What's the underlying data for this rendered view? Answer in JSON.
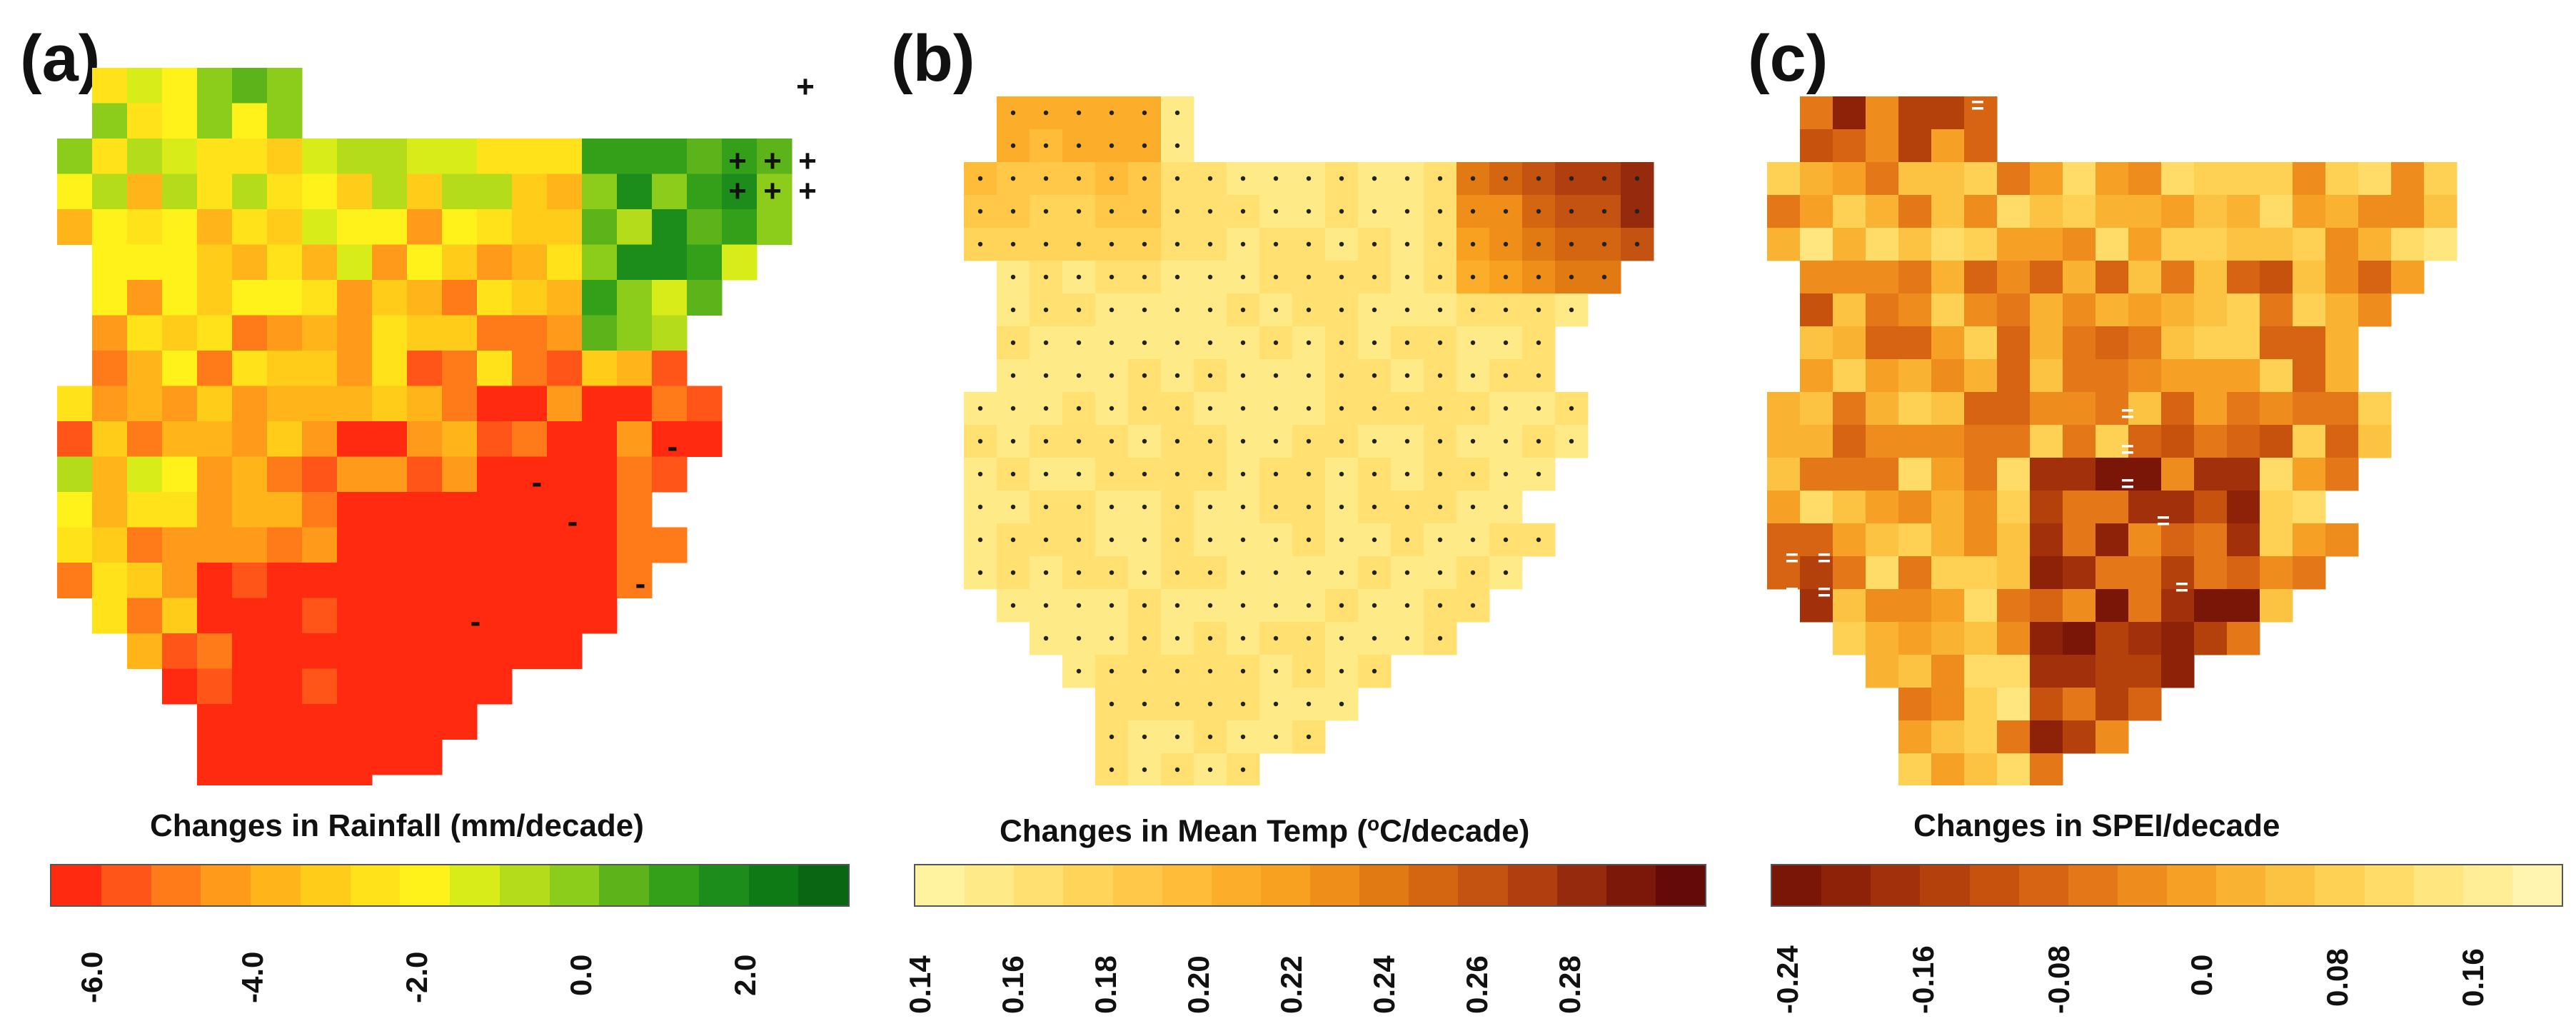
{
  "panels": [
    {
      "label": "(a)",
      "colorbar_title": "Changes in Rainfall (mm/decade)",
      "colorbar_colors": [
        "#ff2a10",
        "#ff5518",
        "#ff7a18",
        "#ff9a1a",
        "#ffb41a",
        "#ffcc1a",
        "#ffe21a",
        "#fff21a",
        "#d8ec1a",
        "#b4dc1a",
        "#8ccc1a",
        "#5cb41a",
        "#34a01a",
        "#1c8c1a",
        "#0e7a16",
        "#0a6612"
      ],
      "ticks": [
        "-6.0",
        "-4.0",
        "-2.0",
        "0.0",
        "2.0"
      ],
      "significance_markers": [
        "+",
        "-"
      ]
    },
    {
      "label": "(b)",
      "colorbar_title_prefix": "Changes in Mean Temp (",
      "colorbar_title_sup": "o",
      "colorbar_title_suffix": "C/decade)",
      "colorbar_colors": [
        "#fff3a0",
        "#ffea88",
        "#ffe070",
        "#ffd458",
        "#ffc848",
        "#ffbc38",
        "#fcae2a",
        "#f8a020",
        "#ef8e18",
        "#e27a14",
        "#d46612",
        "#c45210",
        "#b03e0e",
        "#962a0c",
        "#7c180a",
        "#640a08"
      ],
      "ticks": [
        "0.14",
        "0.16",
        "0.18",
        "0.20",
        "0.22",
        "0.24",
        "0.26",
        "0.28"
      ],
      "significance_markers": [
        "•"
      ]
    },
    {
      "label": "(c)",
      "colorbar_title": "Changes in SPEI/decade",
      "colorbar_colors": [
        "#7a1608",
        "#8e2208",
        "#a2300a",
        "#b4400c",
        "#c6520e",
        "#d66412",
        "#e47818",
        "#ee8c1e",
        "#f6a026",
        "#fab232",
        "#fcc242",
        "#fed054",
        "#ffdc68",
        "#ffe67e",
        "#ffee96",
        "#fff4b0"
      ],
      "ticks": [
        "-0.24",
        "-0.16",
        "-0.08",
        "0.0",
        "0.08",
        "0.16"
      ],
      "significance_markers": [
        "=",
        "="
      ]
    }
  ]
}
